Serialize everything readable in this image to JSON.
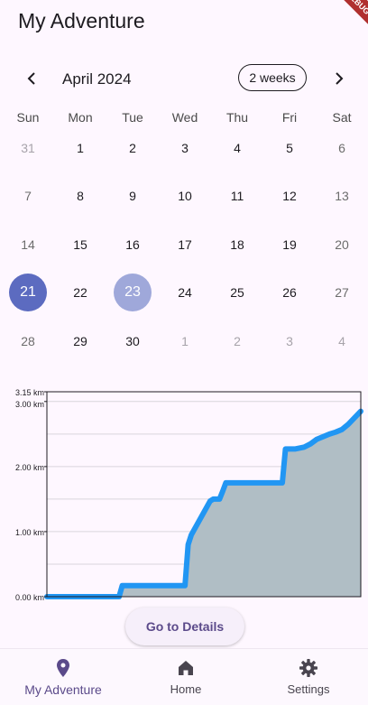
{
  "app": {
    "title": "My Adventure",
    "debug_banner": "DEBUG"
  },
  "calendar": {
    "month": "April 2024",
    "format_button": "2 weeks",
    "weekdays": [
      "Sun",
      "Mon",
      "Tue",
      "Wed",
      "Thu",
      "Fri",
      "Sat"
    ],
    "weeks": [
      [
        {
          "d": "31",
          "outside": true
        },
        {
          "d": "1"
        },
        {
          "d": "2"
        },
        {
          "d": "3"
        },
        {
          "d": "4"
        },
        {
          "d": "5"
        },
        {
          "d": "6",
          "weekend": true
        }
      ],
      [
        {
          "d": "7",
          "weekend": true
        },
        {
          "d": "8"
        },
        {
          "d": "9"
        },
        {
          "d": "10"
        },
        {
          "d": "11"
        },
        {
          "d": "12"
        },
        {
          "d": "13",
          "weekend": true
        }
      ],
      [
        {
          "d": "14",
          "weekend": true
        },
        {
          "d": "15"
        },
        {
          "d": "16"
        },
        {
          "d": "17"
        },
        {
          "d": "18"
        },
        {
          "d": "19"
        },
        {
          "d": "20",
          "weekend": true
        }
      ],
      [
        {
          "d": "21",
          "selected": true
        },
        {
          "d": "22"
        },
        {
          "d": "23",
          "today": true
        },
        {
          "d": "24"
        },
        {
          "d": "25"
        },
        {
          "d": "26"
        },
        {
          "d": "27",
          "weekend": true
        }
      ],
      [
        {
          "d": "28",
          "weekend": true
        },
        {
          "d": "29"
        },
        {
          "d": "30"
        },
        {
          "d": "1",
          "outside": true
        },
        {
          "d": "2",
          "outside": true
        },
        {
          "d": "3",
          "outside": true
        },
        {
          "d": "4",
          "outside": true
        }
      ]
    ],
    "colors": {
      "selected": "#5c6bc0",
      "today": "#9fa8da"
    }
  },
  "chart_data": {
    "type": "area",
    "title": "",
    "xlabel": "",
    "ylabel": "",
    "y_ticks": [
      "0.00 km",
      "1.00 km",
      "2.00 km",
      "3.00 km",
      "3.15 km"
    ],
    "ylim": [
      0,
      3.15
    ],
    "xlim": [
      0,
      1
    ],
    "x": [
      0.0,
      0.23,
      0.24,
      0.44,
      0.45,
      0.46,
      0.52,
      0.53,
      0.55,
      0.56,
      0.57,
      0.75,
      0.76,
      0.79,
      0.82,
      0.84,
      0.86,
      0.88,
      0.9,
      0.92,
      0.94,
      0.96,
      0.98,
      1.0
    ],
    "y": [
      0.0,
      0.0,
      0.17,
      0.17,
      0.8,
      0.95,
      1.47,
      1.5,
      1.5,
      1.62,
      1.75,
      1.75,
      2.27,
      2.27,
      2.3,
      2.35,
      2.42,
      2.46,
      2.5,
      2.53,
      2.57,
      2.65,
      2.75,
      2.85
    ],
    "line_color": "#2196f3",
    "fill_color": "#b0bec5"
  },
  "details_button": "Go to Details",
  "bottom_nav": {
    "items": [
      {
        "label": "My Adventure",
        "icon": "location-pin-icon",
        "active": true
      },
      {
        "label": "Home",
        "icon": "home-icon"
      },
      {
        "label": "Settings",
        "icon": "gear-icon"
      }
    ],
    "active_color": "#5b4a8a"
  }
}
